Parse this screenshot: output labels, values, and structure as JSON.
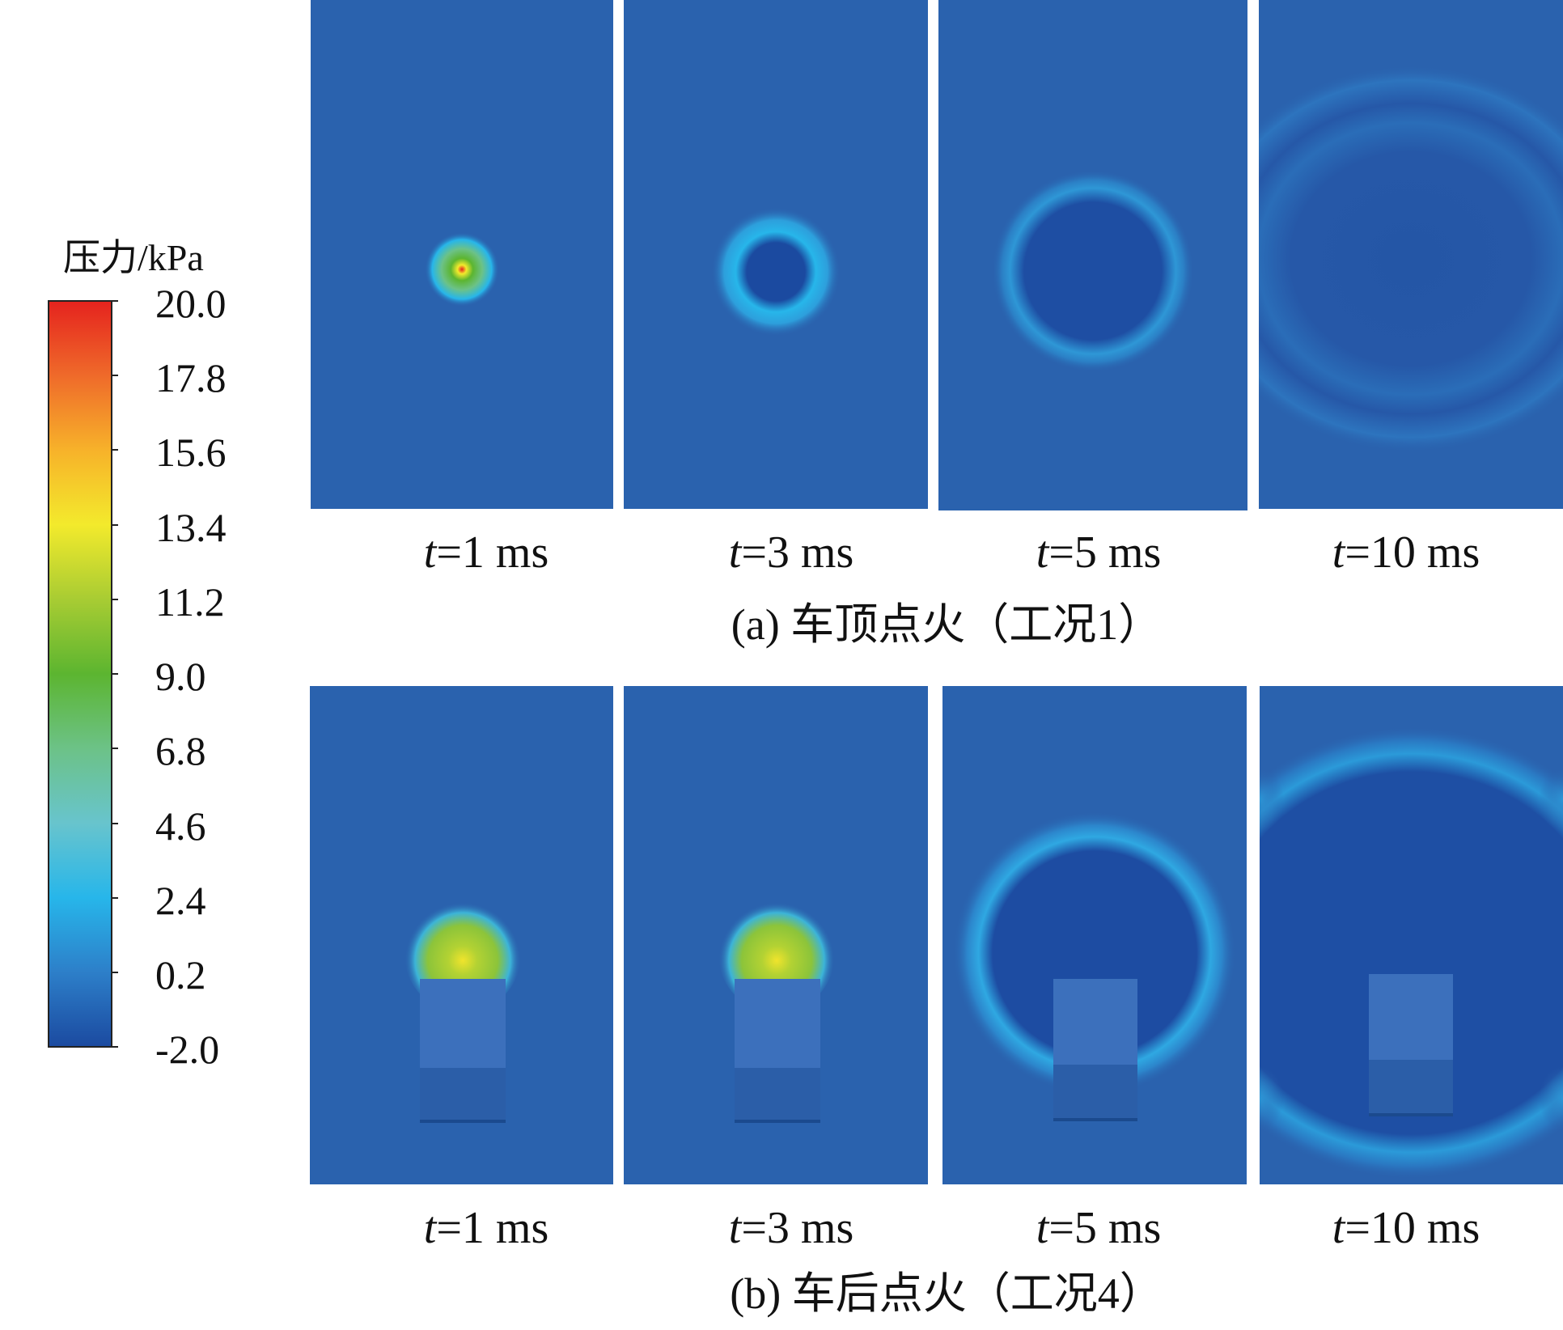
{
  "colorbar": {
    "title": "压力/kPa",
    "ticks": [
      "20.0",
      "17.8",
      "15.6",
      "13.4",
      "11.2",
      "9.0",
      "6.8",
      "4.6",
      "2.4",
      "0.2",
      "-2.0"
    ],
    "colors": [
      "#e5231e",
      "#ef6a2a",
      "#f7b22a",
      "#f3ea2c",
      "#a8cc33",
      "#5cb530",
      "#6cc287",
      "#68c4cd",
      "#27b6ea",
      "#2d7fc9",
      "#1b4aa0"
    ]
  },
  "background_color": "#2a62ae",
  "rows": [
    {
      "caption": "(a) 车顶点火（工况1）",
      "panels": [
        {
          "t_var": "t",
          "t_rest": "=1 ms"
        },
        {
          "t_var": "t",
          "t_rest": "=3 ms"
        },
        {
          "t_var": "t",
          "t_rest": "=5 ms"
        },
        {
          "t_var": "t",
          "t_rest": "=10 ms"
        }
      ]
    },
    {
      "caption": "(b) 车后点火（工况4）",
      "panels": [
        {
          "t_var": "t",
          "t_rest": "=1 ms"
        },
        {
          "t_var": "t",
          "t_rest": "=3 ms"
        },
        {
          "t_var": "t",
          "t_rest": "=5 ms"
        },
        {
          "t_var": "t",
          "t_rest": "=10 ms"
        }
      ]
    }
  ]
}
